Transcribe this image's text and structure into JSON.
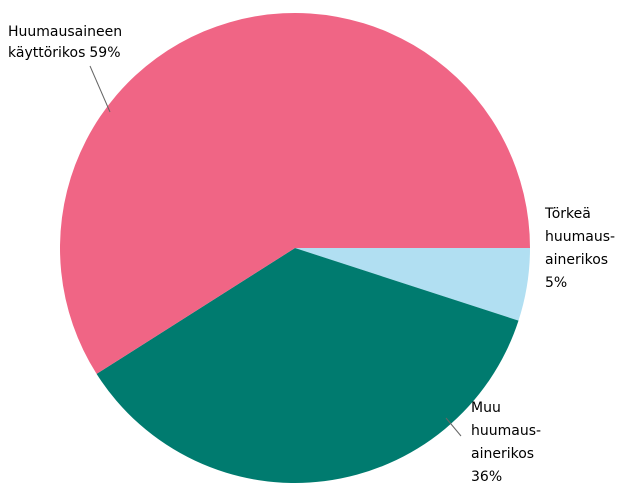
{
  "chart_data": {
    "type": "pie",
    "categories": [
      [
        "Törkeä",
        "huumaus-",
        "ainerikos"
      ],
      [
        "Muu",
        "huumaus-",
        "ainerikos"
      ],
      [
        "Huumausaineen",
        "käyttörikos"
      ]
    ],
    "values": [
      5,
      36,
      59
    ],
    "value_labels": [
      "5%",
      "36%",
      "59%"
    ],
    "colors": [
      "#b1dff2",
      "#007b6f",
      "#f06585"
    ]
  }
}
